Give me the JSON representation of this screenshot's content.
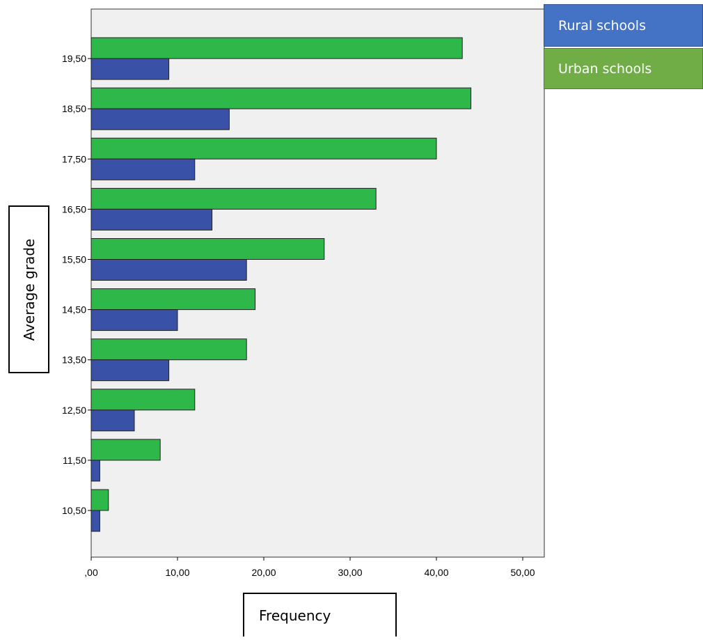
{
  "chart_data": {
    "type": "bar",
    "orientation": "horizontal",
    "categories": [
      "10,50",
      "11,50",
      "12,50",
      "13,50",
      "14,50",
      "15,50",
      "16,50",
      "17,50",
      "18,50",
      "19,50"
    ],
    "series": [
      {
        "name": "Rural schools",
        "color": "#3a51a8",
        "values": [
          1,
          1,
          5,
          9,
          10,
          18,
          14,
          12,
          16,
          9
        ]
      },
      {
        "name": "Urban schools",
        "color": "#2fb84a",
        "values": [
          2,
          8,
          12,
          18,
          19,
          27,
          33,
          40,
          44,
          43
        ]
      }
    ],
    "xlabel": "Frequency",
    "ylabel": "Average grade",
    "xlim": [
      0,
      52
    ],
    "xticks": [
      0,
      10,
      20,
      30,
      40,
      50
    ],
    "xtick_labels": [
      ",00",
      "10,00",
      "20,00",
      "30,00",
      "40,00",
      "50,00"
    ],
    "grid": false,
    "legend_position": "top-right",
    "plot_background": "#f0f0f0"
  }
}
